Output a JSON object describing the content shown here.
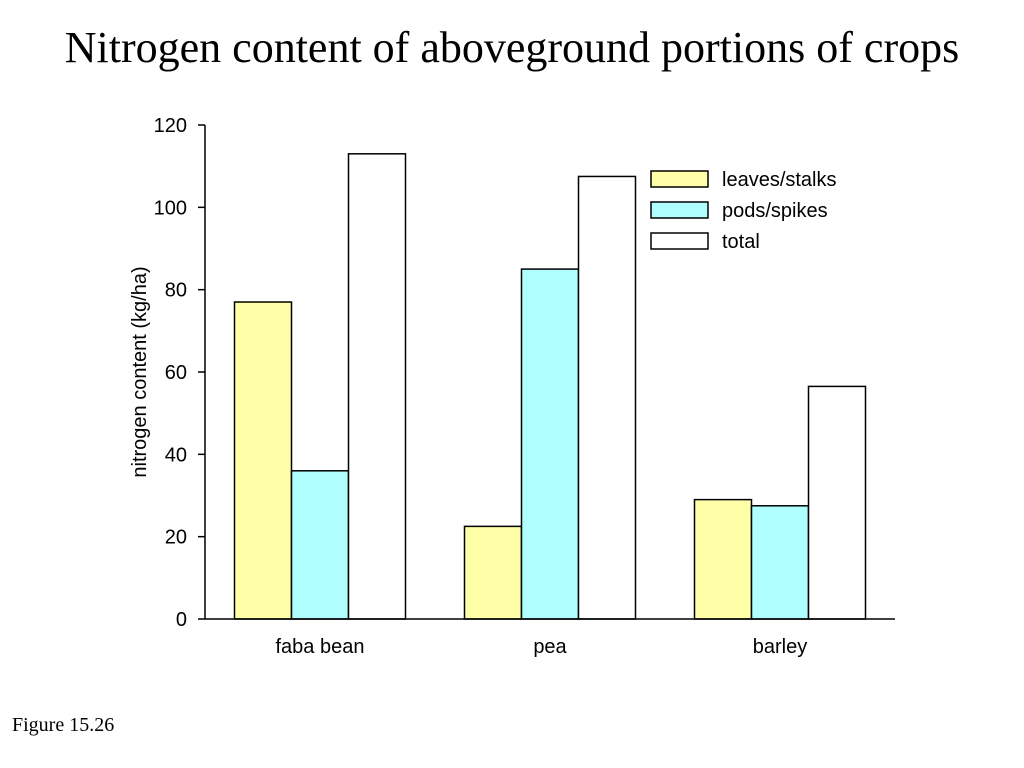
{
  "slide": {
    "title": "Nitrogen content of aboveground portions of crops",
    "caption": "Figure 15.26"
  },
  "chart_data": {
    "type": "bar",
    "title": "",
    "xlabel": "",
    "ylabel": "nitrogen content (kg/ha)",
    "categories": [
      "faba bean",
      "pea",
      "barley"
    ],
    "ylim": [
      0,
      120
    ],
    "yticks": [
      0,
      20,
      40,
      60,
      80,
      100,
      120
    ],
    "grid": false,
    "legend_position": "top-right",
    "series": [
      {
        "name": "leaves/stalks",
        "color": "#ffffa8",
        "values": [
          77,
          22.5,
          29
        ]
      },
      {
        "name": "pods/spikes",
        "color": "#b0ffff",
        "values": [
          36,
          85,
          27.5
        ]
      },
      {
        "name": "total",
        "color": "#ffffff",
        "values": [
          113,
          107.5,
          56.5
        ]
      }
    ]
  }
}
